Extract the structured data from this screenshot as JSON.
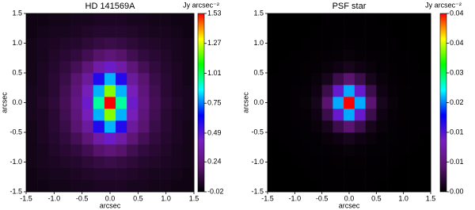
{
  "chart_data": [
    {
      "type": "heatmap",
      "title": "HD 141569A",
      "xlabel": "arcsec",
      "ylabel": "arcsec",
      "colorbar_label": "Jy arcsec⁻²",
      "x": [
        -1.4,
        -1.2,
        -1.0,
        -0.8,
        -0.6,
        -0.4,
        -0.2,
        0,
        0.2,
        0.4,
        0.6,
        0.8,
        1.0,
        1.2,
        1.4
      ],
      "y": [
        -1.4,
        -1.2,
        -1.0,
        -0.8,
        -0.6,
        -0.4,
        -0.2,
        0,
        0.2,
        0.4,
        0.6,
        0.8,
        1.0,
        1.2,
        1.4
      ],
      "z": [
        [
          0.02,
          0.02,
          0.03,
          0.03,
          0.04,
          0.04,
          0.05,
          0.05,
          0.05,
          0.04,
          0.04,
          0.03,
          0.03,
          0.02,
          0.02
        ],
        [
          0.02,
          0.03,
          0.04,
          0.04,
          0.05,
          0.06,
          0.07,
          0.07,
          0.07,
          0.06,
          0.05,
          0.04,
          0.04,
          0.03,
          0.02
        ],
        [
          0.03,
          0.04,
          0.05,
          0.06,
          0.07,
          0.09,
          0.11,
          0.12,
          0.11,
          0.09,
          0.07,
          0.06,
          0.05,
          0.04,
          0.03
        ],
        [
          0.03,
          0.04,
          0.06,
          0.08,
          0.1,
          0.14,
          0.19,
          0.22,
          0.19,
          0.14,
          0.1,
          0.08,
          0.06,
          0.04,
          0.03
        ],
        [
          0.03,
          0.05,
          0.07,
          0.1,
          0.15,
          0.22,
          0.35,
          0.45,
          0.35,
          0.22,
          0.15,
          0.1,
          0.07,
          0.05,
          0.03
        ],
        [
          0.03,
          0.05,
          0.08,
          0.12,
          0.2,
          0.32,
          0.58,
          0.8,
          0.58,
          0.32,
          0.2,
          0.12,
          0.08,
          0.05,
          0.03
        ],
        [
          0.04,
          0.05,
          0.08,
          0.14,
          0.23,
          0.4,
          0.8,
          1.2,
          0.8,
          0.4,
          0.23,
          0.14,
          0.08,
          0.05,
          0.04
        ],
        [
          0.04,
          0.06,
          0.09,
          0.15,
          0.25,
          0.45,
          0.95,
          1.53,
          0.95,
          0.45,
          0.25,
          0.15,
          0.09,
          0.06,
          0.04
        ],
        [
          0.04,
          0.05,
          0.08,
          0.14,
          0.23,
          0.4,
          0.8,
          1.2,
          0.8,
          0.4,
          0.23,
          0.14,
          0.08,
          0.05,
          0.04
        ],
        [
          0.03,
          0.05,
          0.08,
          0.12,
          0.2,
          0.32,
          0.58,
          0.8,
          0.58,
          0.32,
          0.2,
          0.12,
          0.08,
          0.05,
          0.03
        ],
        [
          0.03,
          0.05,
          0.07,
          0.1,
          0.15,
          0.22,
          0.35,
          0.45,
          0.35,
          0.22,
          0.15,
          0.1,
          0.07,
          0.05,
          0.03
        ],
        [
          0.03,
          0.04,
          0.06,
          0.08,
          0.1,
          0.14,
          0.19,
          0.22,
          0.19,
          0.14,
          0.1,
          0.08,
          0.06,
          0.04,
          0.03
        ],
        [
          0.03,
          0.04,
          0.05,
          0.06,
          0.07,
          0.09,
          0.11,
          0.12,
          0.11,
          0.09,
          0.07,
          0.06,
          0.05,
          0.04,
          0.03
        ],
        [
          0.02,
          0.03,
          0.04,
          0.04,
          0.05,
          0.06,
          0.07,
          0.07,
          0.07,
          0.06,
          0.05,
          0.04,
          0.04,
          0.03,
          0.02
        ],
        [
          0.02,
          0.02,
          0.03,
          0.03,
          0.04,
          0.04,
          0.05,
          0.05,
          0.05,
          0.04,
          0.04,
          0.03,
          0.03,
          0.02,
          0.02
        ]
      ],
      "xlim": [
        -1.5,
        1.5
      ],
      "ylim": [
        -1.5,
        1.5
      ],
      "xticks": [
        -1.5,
        {
          "value": -1,
          "label": "-1.0"
        },
        -0.5,
        {
          "value": 0,
          "label": "0.0"
        },
        0.5,
        {
          "value": 1,
          "label": "1.0"
        },
        1.5
      ],
      "yticks": [
        -1.5,
        {
          "value": -1,
          "label": "-1.0"
        },
        -0.5,
        {
          "value": 0,
          "label": "0.0"
        },
        0.5,
        {
          "value": 1,
          "label": "1.0"
        },
        1.5
      ],
      "clim": [
        -0.02,
        1.53
      ],
      "cticks": [
        -0.02,
        0.24,
        0.49,
        0.75,
        1.01,
        1.27,
        1.53
      ],
      "colorscale": [
        "#000000",
        "#5a1470",
        "#7a1fc0",
        "#0000ff",
        "#00ffff",
        "#00ff00",
        "#ffff00",
        "#ff0000"
      ]
    },
    {
      "type": "heatmap",
      "title": "PSF star",
      "xlabel": "arcsec",
      "ylabel": "arcsec",
      "colorbar_label": "Jy arcsec⁻²",
      "x": [
        -1.4,
        -1.2,
        -1.0,
        -0.8,
        -0.6,
        -0.4,
        -0.2,
        0,
        0.2,
        0.4,
        0.6,
        0.8,
        1.0,
        1.2,
        1.4
      ],
      "y": [
        -1.4,
        -1.2,
        -1.0,
        -0.8,
        -0.6,
        -0.4,
        -0.2,
        0,
        0.2,
        0.4,
        0.6,
        0.8,
        1.0,
        1.2,
        1.4
      ],
      "z": [
        [
          0,
          0,
          0,
          0,
          0,
          0.0001,
          0.0001,
          0.0001,
          0.0001,
          0.0001,
          0,
          0,
          0,
          0,
          0
        ],
        [
          0,
          0,
          0,
          0,
          0.0001,
          0.0001,
          0.0001,
          0.0001,
          0.0001,
          0.0001,
          0.0001,
          0,
          0,
          0,
          0
        ],
        [
          0,
          0,
          0,
          0.0001,
          0.0001,
          0.0001,
          0.0002,
          0.0002,
          0.0002,
          0.0001,
          0.0001,
          0.0001,
          0,
          0,
          0
        ],
        [
          0,
          0,
          0.0001,
          0.0001,
          0.0002,
          0.0003,
          0.0004,
          0.0005,
          0.0004,
          0.0003,
          0.0002,
          0.0001,
          0.0001,
          0,
          0
        ],
        [
          0,
          0.0001,
          0.0001,
          0.0002,
          0.0003,
          0.0006,
          0.001,
          0.0015,
          0.001,
          0.0006,
          0.0003,
          0.0002,
          0.0001,
          0.0001,
          0
        ],
        [
          0.0001,
          0.0001,
          0.0001,
          0.0003,
          0.0006,
          0.0015,
          0.004,
          0.006,
          0.004,
          0.0015,
          0.0006,
          0.0003,
          0.0001,
          0.0001,
          0.0001
        ],
        [
          0.0001,
          0.0001,
          0.0002,
          0.0004,
          0.001,
          0.004,
          0.013,
          0.022,
          0.013,
          0.004,
          0.001,
          0.0004,
          0.0002,
          0.0001,
          0.0001
        ],
        [
          0.0001,
          0.0001,
          0.0002,
          0.0005,
          0.0015,
          0.006,
          0.022,
          0.042,
          0.022,
          0.006,
          0.0015,
          0.0005,
          0.0002,
          0.0001,
          0.0001
        ],
        [
          0.0001,
          0.0001,
          0.0002,
          0.0004,
          0.001,
          0.004,
          0.013,
          0.022,
          0.013,
          0.004,
          0.001,
          0.0004,
          0.0002,
          0.0001,
          0.0001
        ],
        [
          0.0001,
          0.0001,
          0.0001,
          0.0003,
          0.0006,
          0.0015,
          0.004,
          0.006,
          0.004,
          0.0015,
          0.0006,
          0.0003,
          0.0001,
          0.0001,
          0.0001
        ],
        [
          0,
          0.0001,
          0.0001,
          0.0002,
          0.0003,
          0.0006,
          0.001,
          0.0015,
          0.001,
          0.0006,
          0.0003,
          0.0002,
          0.0001,
          0.0001,
          0
        ],
        [
          0,
          0,
          0.0001,
          0.0001,
          0.0002,
          0.0003,
          0.0004,
          0.0005,
          0.0004,
          0.0003,
          0.0002,
          0.0001,
          0.0001,
          0,
          0
        ],
        [
          0,
          0,
          0,
          0.0001,
          0.0001,
          0.0001,
          0.0002,
          0.0002,
          0.0002,
          0.0001,
          0.0001,
          0.0001,
          0,
          0,
          0
        ],
        [
          0,
          0,
          0,
          0,
          0.0001,
          0.0001,
          0.0001,
          0.0001,
          0.0001,
          0.0001,
          0.0001,
          0,
          0,
          0,
          0
        ],
        [
          0,
          0,
          0,
          0,
          0,
          0.0001,
          0.0001,
          0.0001,
          0.0001,
          0.0001,
          0,
          0,
          0,
          0,
          0
        ]
      ],
      "xlim": [
        -1.5,
        1.5
      ],
      "ylim": [
        -1.5,
        1.5
      ],
      "xticks": [
        -1.5,
        {
          "value": -1,
          "label": "-1.0"
        },
        -0.5,
        {
          "value": 0,
          "label": "0.0"
        },
        0.5,
        {
          "value": 1,
          "label": "1.0"
        },
        1.5
      ],
      "yticks": [
        -1.5,
        {
          "value": -1,
          "label": "-1.0"
        },
        -0.5,
        {
          "value": 0,
          "label": "0.0"
        },
        0.5,
        {
          "value": 1,
          "label": "1.0"
        },
        1.5
      ],
      "clim": [
        0,
        0.042
      ],
      "cticks": [
        {
          "value": 0,
          "label": "0.00"
        },
        {
          "value": 0.007,
          "label": "0.01"
        },
        {
          "value": 0.014,
          "label": "0.01"
        },
        {
          "value": 0.021,
          "label": "0.02"
        },
        {
          "value": 0.028,
          "label": "0.03"
        },
        {
          "value": 0.035,
          "label": "0.04"
        },
        {
          "value": 0.042,
          "label": "0.04"
        }
      ],
      "colorscale": [
        "#000000",
        "#5a1470",
        "#7a1fc0",
        "#0000ff",
        "#00ffff",
        "#00ff00",
        "#ffff00",
        "#ff0000"
      ]
    }
  ]
}
